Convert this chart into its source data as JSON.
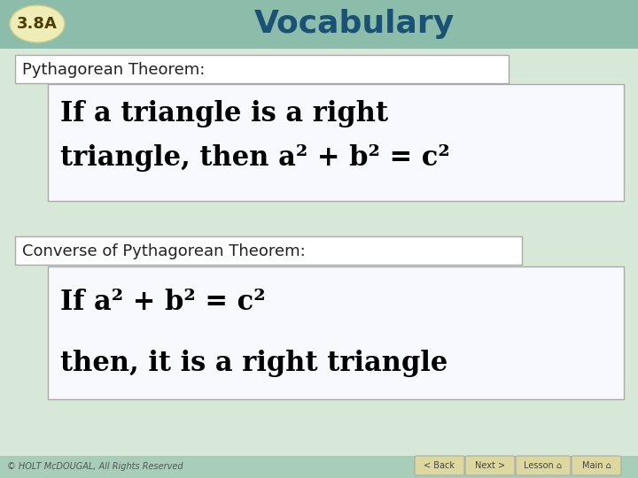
{
  "title": "Vocabulary",
  "section_label": "3.8A",
  "header_bg_color": "#8bbdaa",
  "header_title_color": "#1a5276",
  "section_label_bg": "#f0ecb8",
  "section_label_color": "#4a3e00",
  "body_bg_color": "#d8e8d8",
  "footer_bg_color": "#a8cdb8",
  "footer_text": "© HOLT McDOUGAL, All Rights Reserved",
  "footer_text_color": "#555555",
  "box1_label": "Pythagorean Theorem:",
  "box1_label_color": "#222222",
  "box1_content_line1": "If a triangle is a right",
  "box1_content_line2": "triangle, then a² + b² = c²",
  "box2_label": "Converse of Pythagorean Theorem:",
  "box2_label_color": "#222222",
  "box2_content_line1": "If a² + b² = c²",
  "box2_content_line2": "then, it is a right triangle",
  "content_text_color": "#000000",
  "box_border_color": "#aaaaaa",
  "box_bg_color": "#ffffff",
  "inner_box_bg": "#f8f8ff",
  "nav_buttons": [
    "< Back",
    "Next >",
    "Lesson ⌂",
    "Main ⌂"
  ],
  "nav_button_color": "#ddd8a0",
  "nav_button_text_color": "#444444",
  "label_fontsize": 13,
  "content_fontsize": 22,
  "title_fontsize": 26,
  "section_fontsize": 13
}
